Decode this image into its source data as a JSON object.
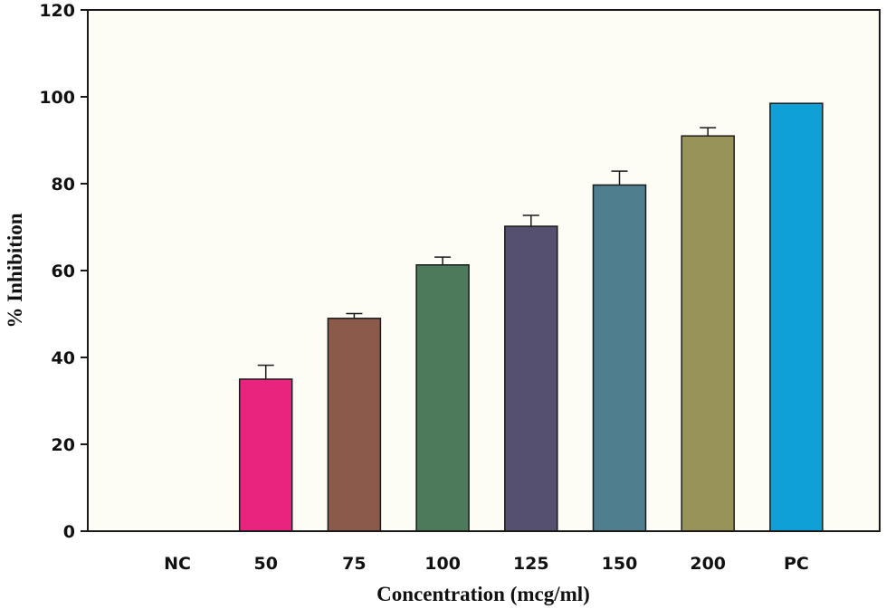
{
  "chart_data": {
    "type": "bar",
    "title": "",
    "xlabel": "Concentration (mcg/ml)",
    "ylabel": "% Inhibition",
    "ylim": [
      0,
      120
    ],
    "yticks": [
      0,
      20,
      40,
      60,
      80,
      100,
      120
    ],
    "categories": [
      "NC",
      "50",
      "75",
      "100",
      "125",
      "150",
      "200",
      "PC"
    ],
    "values": [
      0,
      35,
      49,
      61.3,
      70.2,
      79.7,
      91,
      98.5
    ],
    "errors": [
      0,
      3.2,
      1.1,
      1.8,
      2.5,
      3.2,
      1.9,
      0
    ],
    "colors": [
      "#ffffff",
      "#e8247e",
      "#8b5a4a",
      "#4e7a5c",
      "#555070",
      "#4f7e8e",
      "#979359",
      "#0fa0d8"
    ],
    "plot_background": "#fdfdf5",
    "grid": false,
    "legend": "none"
  }
}
